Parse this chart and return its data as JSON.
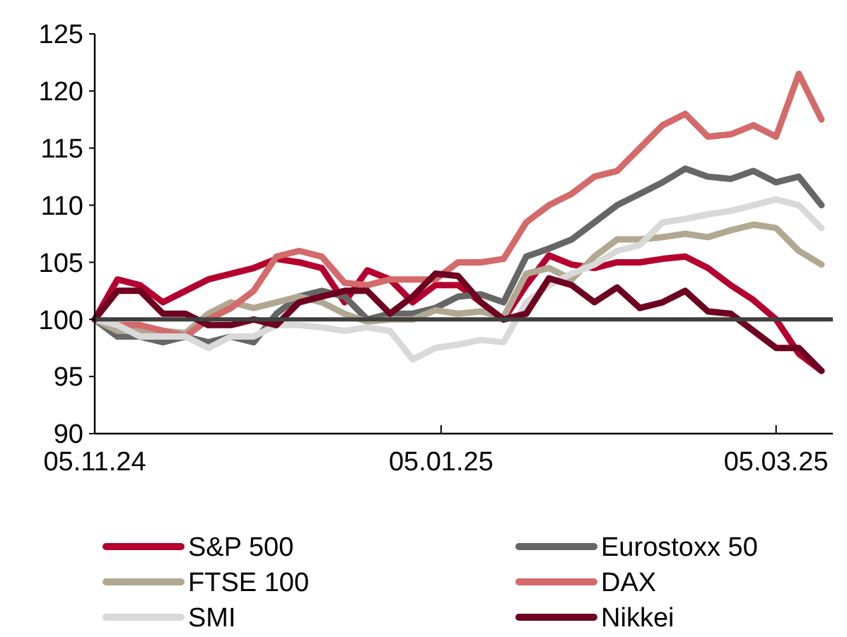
{
  "chart_data": {
    "type": "line",
    "x": [
      "2024-11-05",
      "2024-11-09",
      "2024-11-13",
      "2024-11-17",
      "2024-11-21",
      "2024-11-25",
      "2024-11-29",
      "2024-12-03",
      "2024-12-07",
      "2024-12-11",
      "2024-12-15",
      "2024-12-19",
      "2024-12-23",
      "2024-12-27",
      "2024-12-31",
      "2025-01-04",
      "2025-01-08",
      "2025-01-12",
      "2025-01-16",
      "2025-01-20",
      "2025-01-24",
      "2025-01-28",
      "2025-02-01",
      "2025-02-05",
      "2025-02-09",
      "2025-02-13",
      "2025-02-17",
      "2025-02-21",
      "2025-02-25",
      "2025-03-01",
      "2025-03-05",
      "2025-03-09",
      "2025-03-13"
    ],
    "xlim": [
      "2024-11-05",
      "2025-03-15"
    ],
    "xticks": [
      {
        "value": "2024-11-05",
        "label": "05.11.24"
      },
      {
        "value": "2025-01-05",
        "label": "05.01.25"
      },
      {
        "value": "2025-03-05",
        "label": "05.03.25"
      }
    ],
    "ylim": [
      90,
      125
    ],
    "yticks": [
      90,
      95,
      100,
      105,
      110,
      115,
      120,
      125
    ],
    "grid": false,
    "legend": "bottom",
    "line_style": "solid",
    "marker": "none",
    "ref_lines": [
      {
        "axis": "y",
        "value": 100,
        "color": "#404040"
      }
    ],
    "series": [
      {
        "name": "S&P 500",
        "color": "#b5002f",
        "values": [
          100,
          103.5,
          103,
          101.5,
          102.5,
          103.5,
          104,
          104.5,
          105.3,
          105,
          104.5,
          101.5,
          104.3,
          103.5,
          101.5,
          103,
          103,
          101.5,
          100,
          103,
          105.6,
          104.8,
          104.5,
          105,
          105,
          105.3,
          105.5,
          104.5,
          103,
          101.7,
          100,
          97,
          95.5
        ]
      },
      {
        "name": "Eurostoxx 50",
        "color": "#666666",
        "values": [
          100,
          98.5,
          98.5,
          98,
          98.5,
          98,
          98.5,
          98,
          100.5,
          102,
          102.5,
          102,
          100,
          100.5,
          100.5,
          101,
          102,
          102.2,
          101.5,
          105.5,
          106.2,
          107,
          108.5,
          110,
          111,
          112,
          113.2,
          112.5,
          112.3,
          113,
          112,
          112.5,
          110
        ]
      },
      {
        "name": "FTSE 100",
        "color": "#b0a890",
        "values": [
          100,
          99,
          99,
          99,
          98.8,
          100.5,
          101.5,
          101,
          101.5,
          102,
          101.5,
          100.5,
          99.8,
          100,
          100,
          100.8,
          100.5,
          100.7,
          100.2,
          104,
          104.5,
          103.5,
          105.5,
          107,
          107,
          107.2,
          107.5,
          107.2,
          107.8,
          108.3,
          108,
          106,
          104.8
        ]
      },
      {
        "name": "DAX",
        "color": "#d46a6a",
        "values": [
          100,
          99.5,
          99.5,
          99,
          98.5,
          100,
          101,
          102.5,
          105.5,
          106,
          105.5,
          103.2,
          103,
          103.5,
          103.5,
          103.5,
          105,
          105,
          105.3,
          108.5,
          110,
          111,
          112.5,
          113,
          115,
          117,
          118,
          116,
          116.2,
          117,
          116,
          121.5,
          117.5
        ]
      },
      {
        "name": "SMI",
        "color": "#d9d9d9",
        "values": [
          100,
          99.5,
          98.5,
          98.5,
          98.5,
          97.5,
          98.5,
          98.5,
          99.5,
          99.5,
          99.3,
          99,
          99.3,
          99,
          96.5,
          97.5,
          97.8,
          98.2,
          98,
          101.5,
          103,
          104,
          104.8,
          106,
          106.5,
          108.5,
          108.8,
          109.2,
          109.5,
          110,
          110.5,
          110,
          108
        ]
      },
      {
        "name": "Nikkei",
        "color": "#6e0020",
        "values": [
          100,
          102.5,
          102.5,
          100.5,
          100.5,
          99.5,
          99.5,
          100,
          99.5,
          101.5,
          102,
          102.5,
          102.5,
          100.5,
          102,
          104,
          103.8,
          101.5,
          100,
          100.5,
          103.6,
          103,
          101.5,
          102.8,
          101,
          101.5,
          102.5,
          100.7,
          100.5,
          99,
          97.5,
          97.5,
          95.5
        ]
      }
    ]
  }
}
